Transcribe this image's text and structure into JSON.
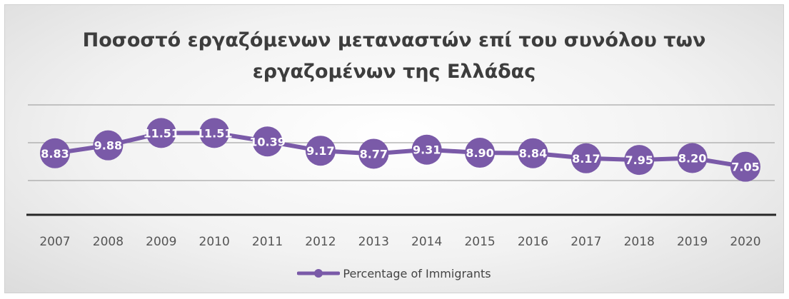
{
  "chart_data": {
    "type": "line",
    "title_lines": [
      "Ποσοστό εργαζόμενων μεταναστών επί του συνόλου των",
      "εργαζομένων της Ελλάδας"
    ],
    "categories": [
      "2007",
      "2008",
      "2009",
      "2010",
      "2011",
      "2012",
      "2013",
      "2014",
      "2015",
      "2016",
      "2017",
      "2018",
      "2019",
      "2020"
    ],
    "series": [
      {
        "name": "Percentage of Immigrants",
        "values": [
          8.83,
          9.88,
          11.51,
          11.51,
          10.39,
          9.17,
          8.77,
          9.31,
          8.9,
          8.84,
          8.17,
          7.95,
          8.2,
          7.05
        ],
        "labels": [
          "8.83",
          "9.88",
          "11.51",
          "11.51",
          "10.39",
          "9.17",
          "8.77",
          "9.31",
          "8.90",
          "8.84",
          "8.17",
          "7.95",
          "8.20",
          "7.05"
        ],
        "color": "#7a5aa8"
      }
    ],
    "grid": true,
    "legend": "bottom"
  }
}
